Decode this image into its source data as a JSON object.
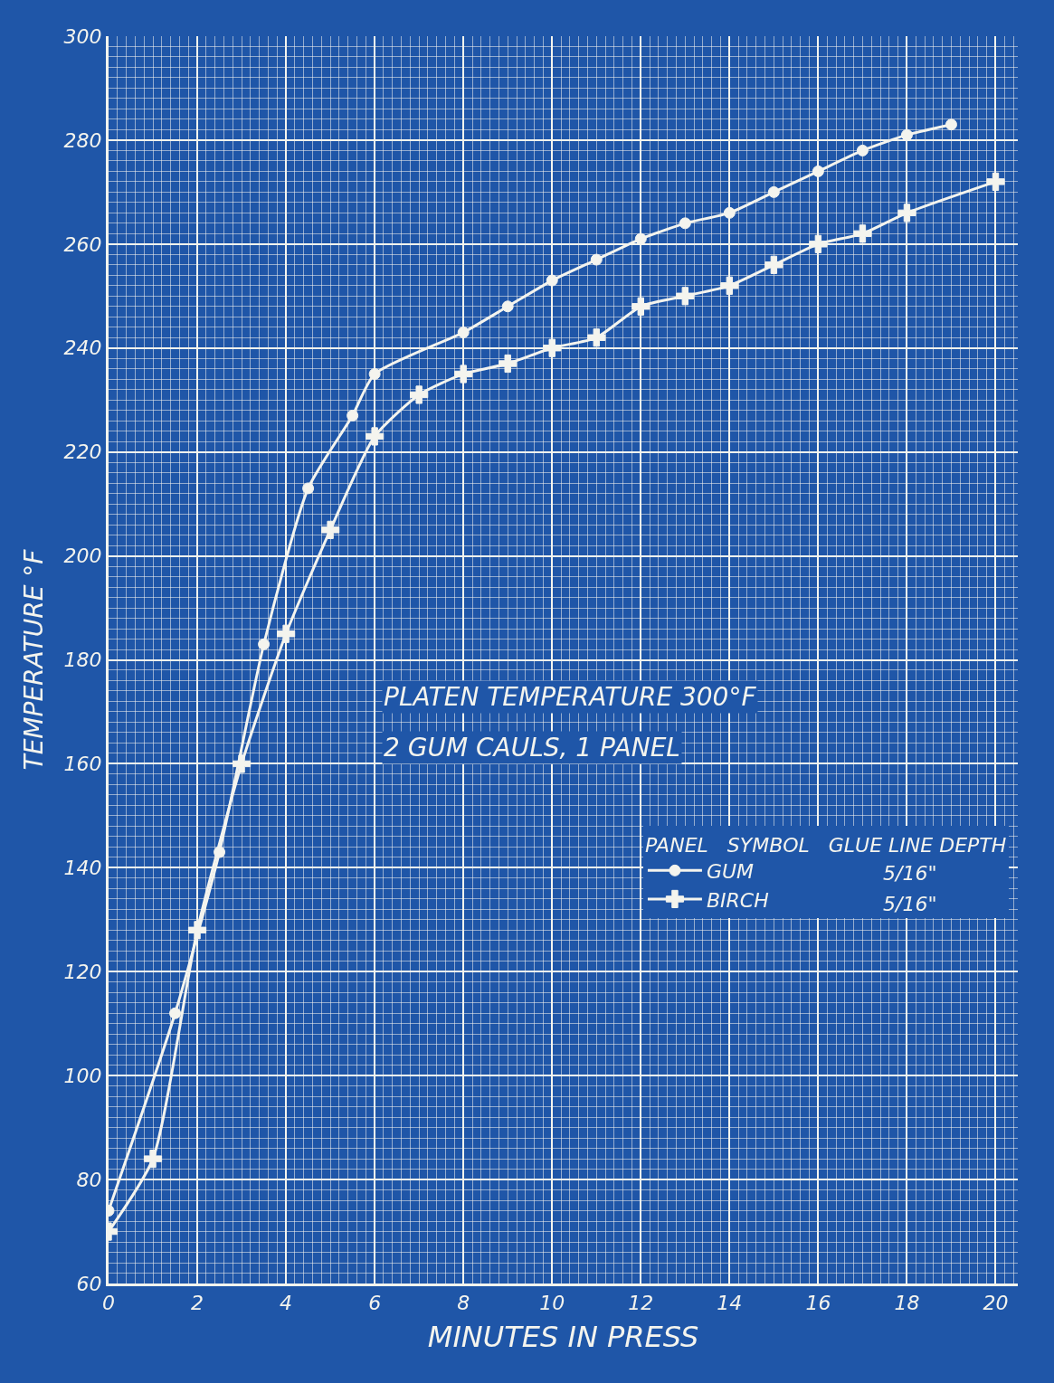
{
  "chart_data": {
    "type": "line",
    "xlabel": "MINUTES IN PRESS",
    "ylabel": "TEMPERATURE °F",
    "legend_title": "PANEL   SYMBOL   GLUE LINE DEPTH",
    "annotations": [
      "PLATEN TEMPERATURE 300°F",
      "2 GUM CAULS, 1 PANEL",
      "5/16\"",
      "5/16\""
    ],
    "series": [
      {
        "name": "GUM",
        "color": "#f4f4ee",
        "marker": "circle",
        "x": [
          0,
          1.5,
          2.5,
          3.5,
          4.5,
          5.5,
          6,
          8,
          9,
          10,
          11,
          12,
          13,
          14,
          15,
          16,
          17,
          18,
          19
        ],
        "values": [
          74,
          112,
          143,
          183,
          213,
          227,
          235,
          243,
          248,
          253,
          257,
          261,
          264,
          266,
          270,
          274,
          278,
          281,
          283
        ]
      },
      {
        "name": "BIRCH",
        "color": "#f4f4ee",
        "marker": "cross",
        "x": [
          0,
          1,
          2,
          3,
          4,
          5,
          6,
          7,
          8,
          9,
          10,
          11,
          12,
          13,
          14,
          15,
          16,
          17,
          18,
          20
        ],
        "values": [
          70,
          84,
          128,
          160,
          185,
          205,
          223,
          231,
          235,
          237,
          240,
          242,
          248,
          250,
          252,
          256,
          260,
          262,
          266,
          272
        ]
      }
    ],
    "xlim": [
      0,
      20.5
    ],
    "ylim": [
      60,
      300
    ],
    "xticks": [
      0,
      2,
      4,
      6,
      8,
      10,
      12,
      14,
      16,
      18,
      20
    ],
    "yticks": [
      60,
      80,
      100,
      120,
      140,
      160,
      180,
      200,
      220,
      240,
      260,
      280,
      300
    ],
    "grid": true,
    "legend": "right",
    "line_style": "solid"
  }
}
